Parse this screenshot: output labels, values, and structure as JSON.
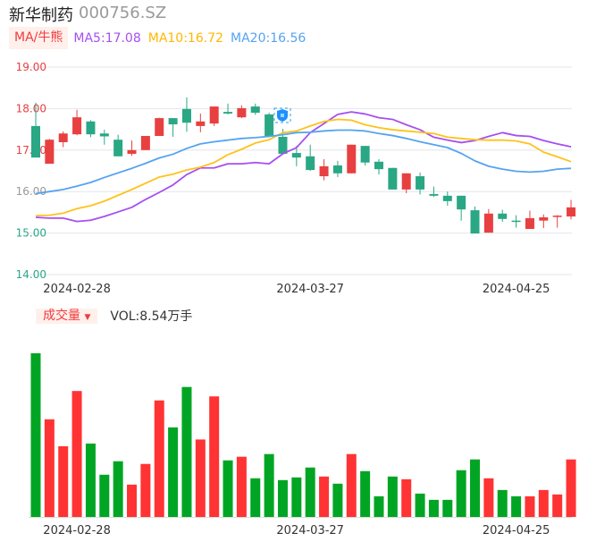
{
  "header": {
    "name": "新华制药",
    "code": "000756.SZ"
  },
  "legend": {
    "toggle": "MA/牛熊",
    "ma5": "MA5:17.08",
    "ma10": "MA10:16.72",
    "ma20": "MA20:16.56"
  },
  "volume_header": {
    "toggle": "成交量",
    "vol": "VOL:8.54万手"
  },
  "colors": {
    "up": "#e84040",
    "down": "#2aa784",
    "vol_up": "#ff3333",
    "vol_down": "#00a524",
    "ma5": "#a64ff0",
    "ma10": "#ffc21a",
    "ma20": "#55a3f0"
  },
  "chart_data": [
    {
      "type": "candlestick",
      "title": "新华制药 000756.SZ",
      "ylim": [
        14,
        19
      ],
      "yticks": [
        "19.00",
        "18.00",
        "17.00",
        "16.00",
        "15.00",
        "14.00"
      ],
      "xtick_labels": [
        {
          "index": 3,
          "label": "2024-02-28"
        },
        {
          "index": 20,
          "label": "2024-03-27"
        },
        {
          "index": 35,
          "label": "2024-04-25"
        }
      ],
      "ohlc": [
        [
          17.58,
          16.82,
          18.14,
          16.82
        ],
        [
          16.67,
          17.25,
          17.27,
          16.67
        ],
        [
          17.19,
          17.4,
          17.45,
          17.07
        ],
        [
          17.38,
          17.79,
          17.97,
          17.36
        ],
        [
          17.69,
          17.38,
          17.72,
          17.31
        ],
        [
          17.4,
          17.33,
          17.49,
          17.13
        ],
        [
          17.25,
          16.85,
          17.37,
          16.85
        ],
        [
          16.91,
          17.0,
          17.23,
          16.86
        ],
        [
          17.0,
          17.34,
          17.34,
          17.0
        ],
        [
          17.34,
          17.77,
          17.78,
          17.34
        ],
        [
          17.77,
          17.62,
          17.77,
          17.32
        ],
        [
          17.99,
          17.66,
          18.27,
          17.44
        ],
        [
          17.58,
          17.69,
          17.88,
          17.43
        ],
        [
          17.64,
          18.05,
          18.05,
          17.58
        ],
        [
          17.92,
          17.88,
          18.12,
          17.86
        ],
        [
          17.79,
          18.01,
          18.08,
          17.77
        ],
        [
          18.05,
          17.9,
          18.12,
          17.85
        ],
        [
          17.86,
          17.34,
          17.9,
          17.31
        ],
        [
          17.32,
          16.91,
          17.51,
          16.9
        ],
        [
          16.93,
          16.82,
          17.1,
          16.61
        ],
        [
          16.85,
          16.52,
          17.13,
          16.5
        ],
        [
          16.37,
          16.61,
          16.78,
          16.27
        ],
        [
          16.63,
          16.44,
          16.74,
          16.35
        ],
        [
          16.44,
          17.13,
          17.13,
          16.44
        ],
        [
          17.1,
          16.7,
          17.1,
          16.63
        ],
        [
          16.72,
          16.54,
          16.78,
          16.41
        ],
        [
          16.57,
          16.05,
          16.57,
          16.05
        ],
        [
          16.05,
          16.44,
          16.44,
          15.96
        ],
        [
          16.37,
          16.05,
          16.46,
          15.93
        ],
        [
          15.94,
          15.9,
          16.12,
          15.87
        ],
        [
          15.9,
          15.77,
          16.0,
          15.66
        ],
        [
          15.9,
          15.57,
          15.9,
          15.3
        ],
        [
          15.55,
          14.99,
          15.64,
          14.99
        ],
        [
          15.01,
          15.47,
          15.58,
          15.01
        ],
        [
          15.47,
          15.34,
          15.56,
          15.27
        ],
        [
          15.3,
          15.27,
          15.43,
          15.13
        ],
        [
          15.1,
          15.36,
          15.54,
          15.1
        ],
        [
          15.3,
          15.38,
          15.45,
          15.12
        ],
        [
          15.4,
          15.42,
          15.43,
          15.13
        ],
        [
          15.4,
          15.62,
          15.8,
          15.33
        ]
      ],
      "series": [
        {
          "name": "MA5",
          "values": [
            15.38,
            15.36,
            15.36,
            15.28,
            15.31,
            15.4,
            15.51,
            15.62,
            15.81,
            15.98,
            16.16,
            16.41,
            16.57,
            16.57,
            16.67,
            16.67,
            16.7,
            16.67,
            16.91,
            17.06,
            17.42,
            17.64,
            17.86,
            17.92,
            17.87,
            17.78,
            17.74,
            17.61,
            17.49,
            17.31,
            17.24,
            17.18,
            17.23,
            17.33,
            17.42,
            17.35,
            17.33,
            17.23,
            17.15,
            17.08
          ]
        },
        {
          "name": "MA10",
          "values": [
            15.42,
            15.43,
            15.48,
            15.59,
            15.66,
            15.77,
            15.91,
            16.05,
            16.2,
            16.35,
            16.42,
            16.52,
            16.59,
            16.7,
            16.89,
            17.02,
            17.17,
            17.25,
            17.42,
            17.46,
            17.58,
            17.69,
            17.74,
            17.72,
            17.61,
            17.54,
            17.49,
            17.46,
            17.43,
            17.4,
            17.31,
            17.28,
            17.25,
            17.24,
            17.24,
            17.22,
            17.15,
            16.95,
            16.84,
            16.72
          ]
        },
        {
          "name": "MA20",
          "values": [
            15.95,
            16.0,
            16.05,
            16.13,
            16.22,
            16.34,
            16.45,
            16.56,
            16.68,
            16.81,
            16.9,
            17.04,
            17.15,
            17.2,
            17.24,
            17.28,
            17.3,
            17.33,
            17.37,
            17.42,
            17.43,
            17.46,
            17.48,
            17.48,
            17.46,
            17.4,
            17.35,
            17.28,
            17.2,
            17.13,
            17.06,
            16.92,
            16.74,
            16.61,
            16.54,
            16.49,
            16.47,
            16.49,
            16.54,
            16.56
          ]
        }
      ]
    },
    {
      "type": "bar",
      "title": "成交量",
      "ylabel": "万手",
      "ylim": [
        0,
        24.3
      ],
      "xtick_labels": [
        {
          "index": 3,
          "label": "2024-02-28"
        },
        {
          "index": 20,
          "label": "2024-03-27"
        },
        {
          "index": 35,
          "label": "2024-04-25"
        }
      ],
      "values": [
        24.3,
        14.5,
        10.5,
        18.7,
        10.9,
        6.27,
        8.27,
        4.8,
        7.87,
        17.3,
        13.3,
        19.3,
        11.5,
        17.9,
        8.4,
        8.94,
        5.74,
        9.34,
        5.47,
        5.87,
        7.34,
        6.0,
        4.94,
        9.34,
        6.8,
        3.07,
        6.0,
        5.6,
        3.47,
        2.54,
        2.54,
        6.94,
        8.54,
        5.74,
        4.0,
        3.07,
        3.07,
        4.0,
        3.34,
        8.54
      ]
    }
  ]
}
